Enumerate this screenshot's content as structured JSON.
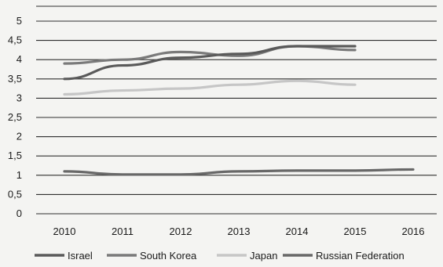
{
  "chart_data": {
    "type": "line",
    "categories": [
      "2010",
      "2011",
      "2012",
      "2013",
      "2014",
      "2015",
      "2016"
    ],
    "y_ticks": [
      "0",
      "0,5",
      "1",
      "1,5",
      "2",
      "2,5",
      "3",
      "3,5",
      "4",
      "4,5",
      "5"
    ],
    "ylim": [
      0,
      5
    ],
    "grid": true,
    "legend_position": "bottom",
    "series": [
      {
        "name": "Israel",
        "color": "#5a5a5a",
        "values": [
          3.5,
          3.85,
          4.05,
          4.15,
          4.35,
          4.35,
          null
        ]
      },
      {
        "name": "South Korea",
        "color": "#7a7a7a",
        "values": [
          3.9,
          4.0,
          4.2,
          4.1,
          4.35,
          4.25,
          null
        ]
      },
      {
        "name": "Japan",
        "color": "#c6c6c6",
        "values": [
          3.1,
          3.2,
          3.25,
          3.35,
          3.45,
          3.35,
          null
        ]
      },
      {
        "name": "Russian Federation",
        "color": "#686868",
        "values": [
          1.1,
          1.02,
          1.02,
          1.1,
          1.12,
          1.12,
          1.15
        ]
      }
    ]
  }
}
